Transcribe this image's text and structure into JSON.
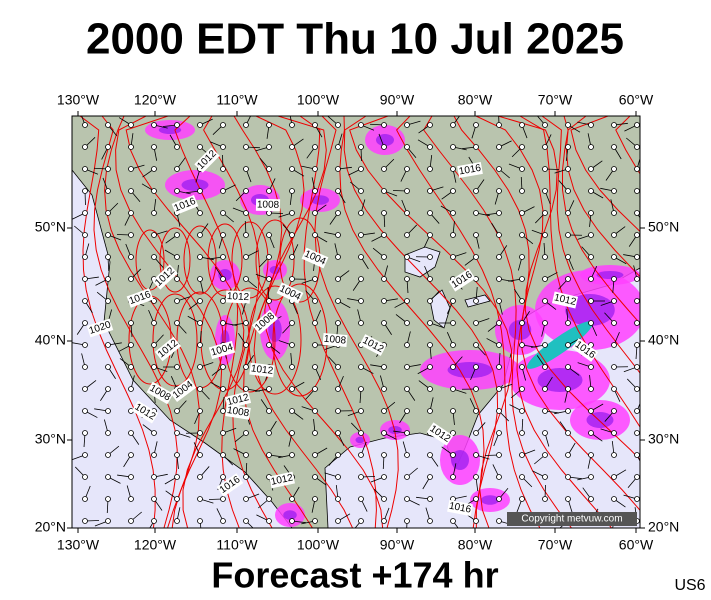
{
  "header": {
    "title": "2000 EDT Thu 10 Jul 2025"
  },
  "map": {
    "top_labels": [
      "130°W",
      "120°W",
      "110°W",
      "100°W",
      "90°W",
      "80°W",
      "70°W",
      "60°W"
    ],
    "bottom_labels": [
      "130°W",
      "120°W",
      "110°W",
      "100°W",
      "90°W",
      "80°W",
      "70°W",
      "60°W"
    ],
    "left_labels": [
      "50°N",
      "40°N",
      "30°N",
      "20°N"
    ],
    "right_labels": [
      "50°N",
      "40°N",
      "30°N",
      "20°N"
    ],
    "isobar_labels": [
      "1012",
      "1016",
      "1008",
      "1004",
      "1012",
      "1016",
      "1012",
      "1004",
      "1008",
      "1020",
      "1008",
      "1012",
      "1012",
      "1004",
      "1012",
      "1008",
      "1004",
      "1012",
      "1008",
      "1012",
      "1016",
      "1012",
      "1016",
      "1012",
      "1016",
      "1016",
      "1012",
      "1016"
    ],
    "copyright": "Copyright metvuw.com"
  },
  "footer": {
    "forecast": "Forecast +174 hr",
    "region": "US6"
  }
}
